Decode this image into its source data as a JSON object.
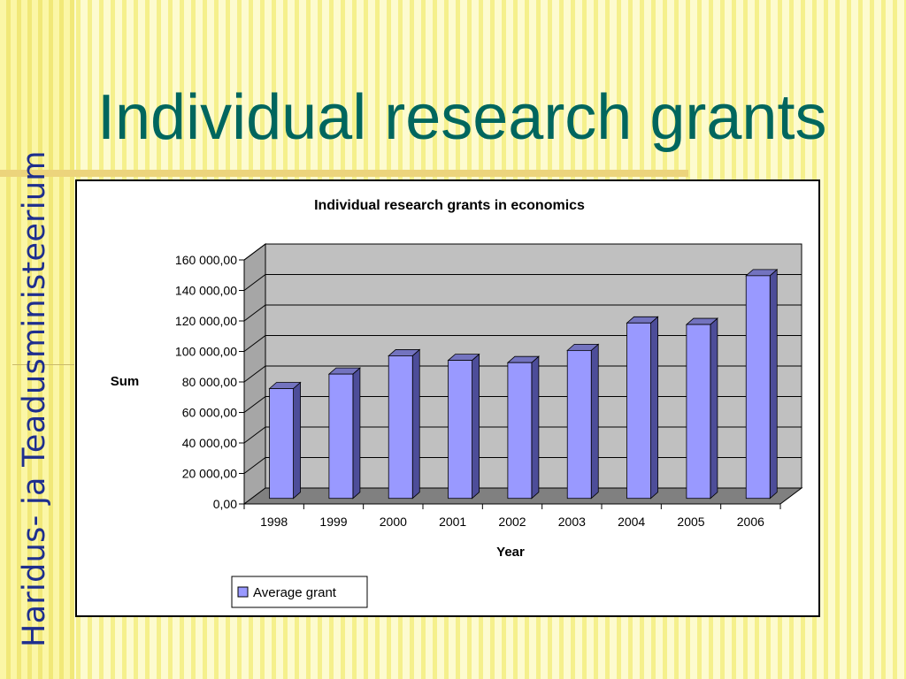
{
  "slide": {
    "title": "Individual research grants",
    "logo_text": "Haridus- ja Teadusministeerium"
  },
  "colors": {
    "title": "#00665e",
    "logo": "#1e2e8e",
    "bar_front": "#9999ff",
    "bar_side": "#4d4d99",
    "bar_top": "#7373bf",
    "plot_wall": "#c0c0c0",
    "plot_floor": "#808080"
  },
  "chart_data": {
    "type": "bar",
    "title": "Individual research grants in economics",
    "xlabel": "Year",
    "ylabel": "Sum",
    "categories": [
      "1998",
      "1999",
      "2000",
      "2001",
      "2002",
      "2003",
      "2004",
      "2005",
      "2006"
    ],
    "series": [
      {
        "name": "Average grant",
        "values": [
          72000,
          81500,
          93500,
          90500,
          89000,
          97000,
          115000,
          114000,
          146000
        ]
      }
    ],
    "ylim": [
      0,
      160000
    ],
    "ytick_labels": [
      "0,00",
      "20 000,00",
      "40 000,00",
      "60 000,00",
      "80 000,00",
      "100 000,00",
      "120 000,00",
      "140 000,00",
      "160 000,00"
    ],
    "grid": true,
    "style": "3d-clustered-column",
    "legend_position": "bottom-left"
  }
}
